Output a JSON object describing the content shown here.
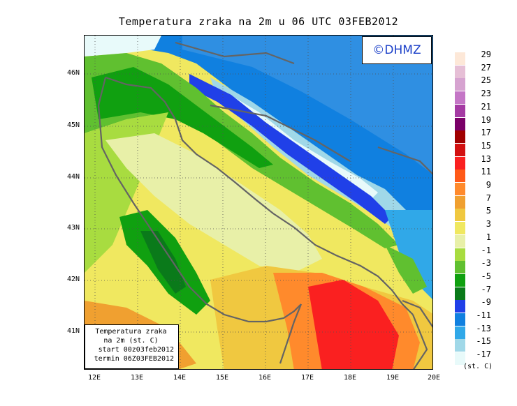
{
  "title": "Temperatura zraka na 2m u 06 UTC 03FEB2012",
  "watermark": "©DHMZ",
  "info_box": {
    "line1": "Temperatura zraka",
    "line2": "na 2m (st. C)",
    "line3": "start 00z03feb2012",
    "line4": "termin 06Z03FEB2012"
  },
  "map": {
    "lat_ticks": [
      "46N",
      "45N",
      "44N",
      "43N",
      "42N",
      "41N"
    ],
    "lon_ticks": [
      "12E",
      "13E",
      "14E",
      "15E",
      "16E",
      "17E",
      "18E",
      "19E",
      "20E"
    ]
  },
  "legend": {
    "unit": "(st. C)",
    "labels": [
      "29",
      "27",
      "25",
      "23",
      "21",
      "19",
      "17",
      "15",
      "13",
      "11",
      "9",
      "7",
      "5",
      "3",
      "1",
      "-1",
      "-3",
      "-5",
      "-7",
      "-9",
      "-11",
      "-13",
      "-15",
      "-17"
    ],
    "colors": [
      "#fde8d8",
      "#e6bfd6",
      "#d6a3d0",
      "#c476c6",
      "#a43aa3",
      "#7a0068",
      "#a00000",
      "#d21010",
      "#fa2020",
      "#ff5a18",
      "#ff8a2c",
      "#f0a030",
      "#f0c840",
      "#f0e860",
      "#e8f0a8",
      "#a8dc40",
      "#60c030",
      "#10a010",
      "#0a7a1a",
      "#2040e8",
      "#1080e0",
      "#30a8e8",
      "#a0d8e8",
      "#e8fafa"
    ]
  },
  "colors": {
    "coast": "#646464",
    "watermark": "#1a3fc8"
  }
}
